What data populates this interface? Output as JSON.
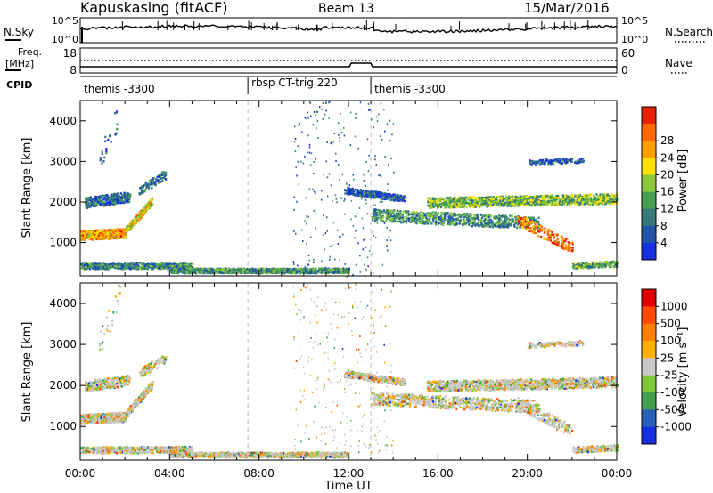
{
  "header": {
    "station": "Kapuskasing (fitACF)",
    "beam": "Beam 13",
    "date": "15/Mar/2016"
  },
  "panels": {
    "noise": {
      "left_label": "N.Sky",
      "right_label": "N.Search",
      "left_ticks": [
        "10^5",
        "10^0"
      ],
      "right_ticks": [
        "10^5",
        "10^0"
      ]
    },
    "freq": {
      "left_label_line1": "Freq.",
      "left_label_line2": "[MHz]",
      "left_ticks": [
        "18",
        "8"
      ],
      "right_label": "Nave",
      "right_ticks": [
        "60",
        "0"
      ]
    },
    "cpid": {
      "label": "CPID",
      "segments": [
        {
          "name": "themis -3300",
          "start_hour": 0.0,
          "end_hour": 7.5
        },
        {
          "name": "rbsp CT-trig 220",
          "start_hour": 7.5,
          "end_hour": 13.0
        },
        {
          "name": "themis -3300",
          "start_hour": 13.0,
          "end_hour": 24.0
        }
      ]
    }
  },
  "chart_data": [
    {
      "type": "heatmap",
      "title": "",
      "xlabel": "Time UT",
      "ylabel": "Slant Range [km]",
      "xlim": [
        0,
        24
      ],
      "ylim": [
        180,
        4500
      ],
      "x_ticks": [
        "00:00",
        "04:00",
        "08:00",
        "12:00",
        "16:00",
        "20:00",
        "00:00"
      ],
      "y_ticks": [
        1000,
        2000,
        3000,
        4000
      ],
      "colorbar": {
        "label": "Power [dB]",
        "ticks": [
          4,
          8,
          12,
          16,
          20,
          24,
          28
        ],
        "colors": [
          "#1530e0",
          "#2255a8",
          "#357a78",
          "#45a050",
          "#8cc83a",
          "#ffe000",
          "#ffa000",
          "#ff6a00",
          "#e62200"
        ]
      }
    },
    {
      "type": "heatmap",
      "title": "",
      "xlabel": "Time UT",
      "ylabel": "Slant Range [km]",
      "xlim": [
        0,
        24
      ],
      "ylim": [
        180,
        4500
      ],
      "x_ticks": [
        "00:00",
        "04:00",
        "08:00",
        "12:00",
        "16:00",
        "20:00",
        "00:00"
      ],
      "y_ticks": [
        1000,
        2000,
        3000,
        4000
      ],
      "colorbar": {
        "label": "Velocity [m s⁻¹]",
        "ticks": [
          "1000",
          "500",
          "100",
          "25",
          "-25",
          "-100",
          "-500",
          "-1000"
        ],
        "colors": [
          "#1530e0",
          "#2860b8",
          "#40a050",
          "#80c838",
          "#c8c8c8",
          "#ffb000",
          "#ff8000",
          "#ff4a00",
          "#e00000"
        ]
      }
    }
  ]
}
